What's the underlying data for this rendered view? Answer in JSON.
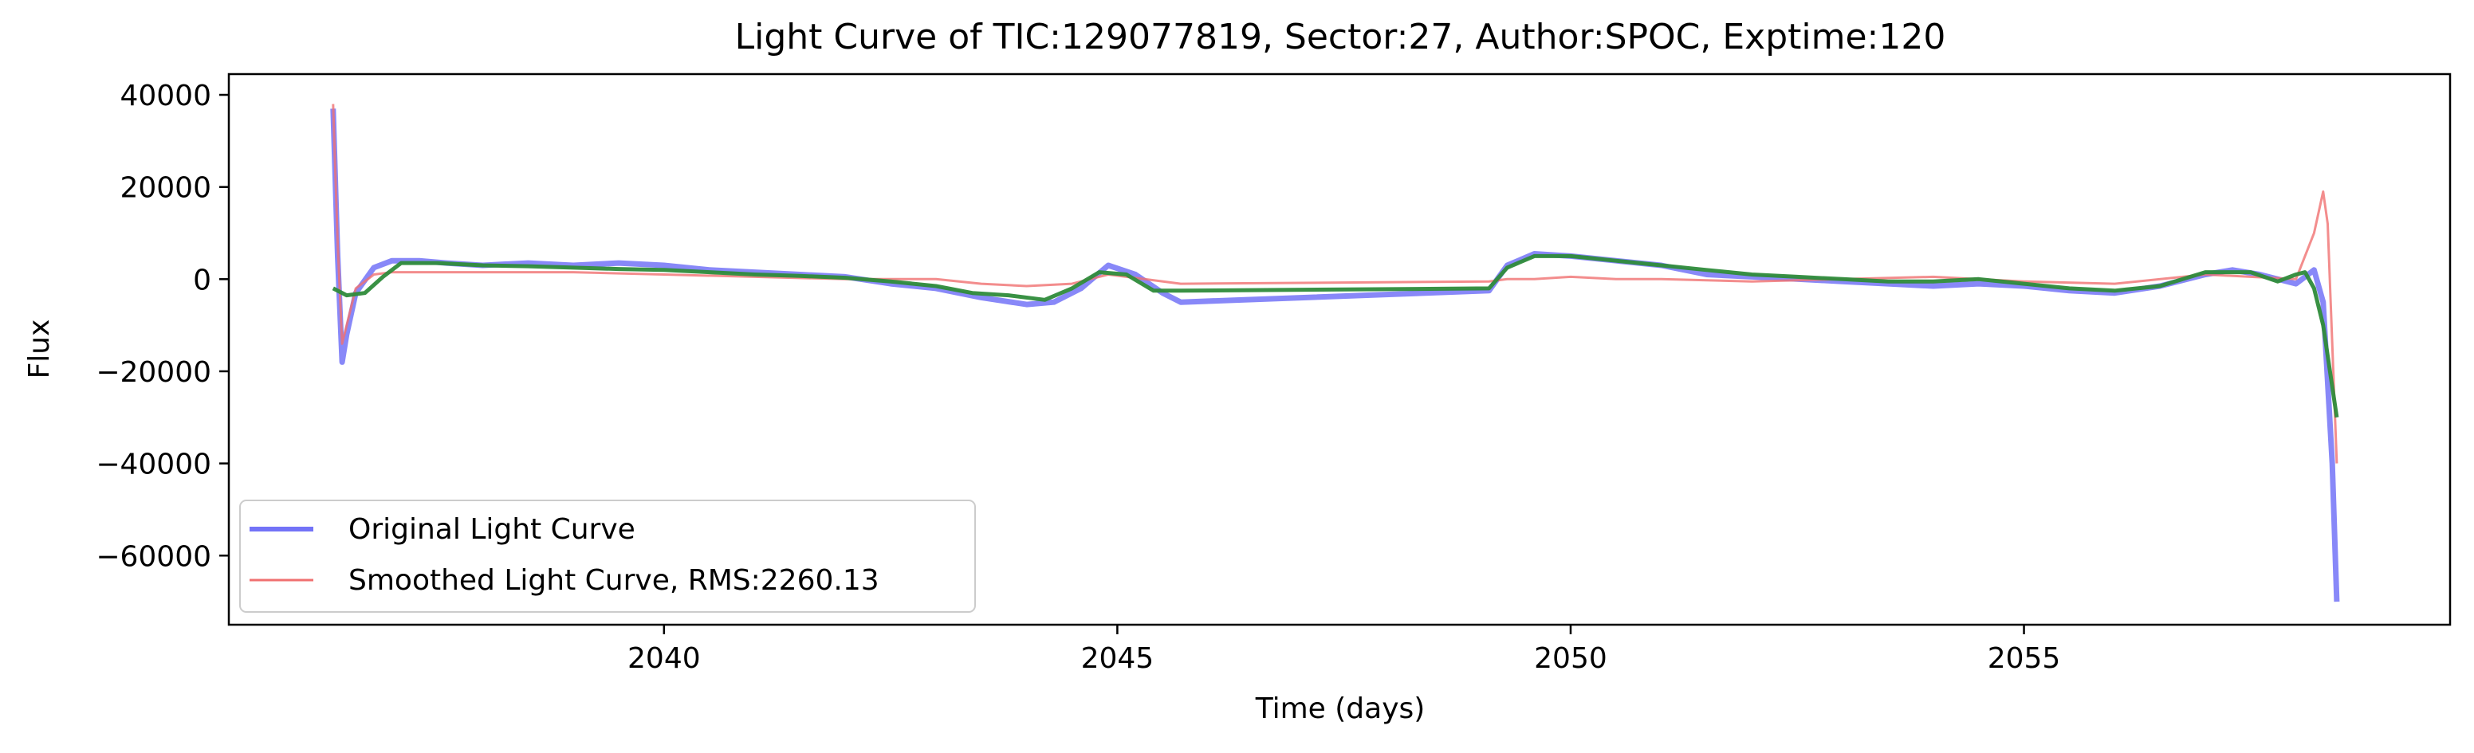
{
  "chart_data": {
    "type": "line",
    "title": "Light Curve of TIC:129077819, Sector:27, Author:SPOC, Exptime:120",
    "xlabel": "Time (days)",
    "ylabel": "Flux",
    "xlim": [
      2035.2,
      2059.7
    ],
    "ylim": [
      -75000,
      44500
    ],
    "xticks": [
      2040,
      2045,
      2050,
      2055
    ],
    "yticks": [
      40000,
      20000,
      0,
      -20000,
      -40000,
      -60000
    ],
    "grid": false,
    "legend_position": "lower-left",
    "legend_entries": [
      "Original Light Curve",
      "Smoothed Light Curve, RMS:2260.13"
    ],
    "series": [
      {
        "name": "Original Light Curve",
        "color": "#7373f7",
        "x": [
          2036.35,
          2036.4,
          2036.45,
          2036.5,
          2036.6,
          2036.8,
          2037.0,
          2037.3,
          2037.6,
          2038.0,
          2038.5,
          2039.0,
          2039.5,
          2040.0,
          2040.5,
          2041.0,
          2041.5,
          2042.0,
          2042.5,
          2043.0,
          2043.5,
          2044.0,
          2044.3,
          2044.6,
          2044.9,
          2045.2,
          2045.5,
          2045.7,
          2049.1,
          2049.3,
          2049.6,
          2050.0,
          2050.5,
          2051.0,
          2051.5,
          2052.0,
          2052.5,
          2053.0,
          2053.5,
          2054.0,
          2054.5,
          2055.0,
          2055.5,
          2056.0,
          2056.5,
          2057.0,
          2057.3,
          2057.6,
          2058.0,
          2058.2,
          2058.3,
          2058.4,
          2058.45
        ],
        "values": [
          37000,
          5000,
          -18000,
          -12000,
          -3000,
          2500,
          4000,
          4000,
          3500,
          3000,
          3500,
          3000,
          3500,
          3000,
          2000,
          1500,
          1000,
          500,
          -1000,
          -2000,
          -4000,
          -5500,
          -5000,
          -2000,
          3000,
          1000,
          -3000,
          -5000,
          -2500,
          3000,
          5500,
          5000,
          4000,
          3000,
          1000,
          500,
          0,
          -500,
          -1000,
          -1500,
          -1000,
          -1500,
          -2500,
          -3000,
          -1500,
          1000,
          2000,
          1000,
          -1000,
          2000,
          -5000,
          -40000,
          -70000
        ]
      },
      {
        "name": "Smoothed Light Curve, RMS:2260.13",
        "color": "#f07070",
        "x": [
          2036.35,
          2036.4,
          2036.45,
          2036.5,
          2036.6,
          2036.8,
          2037.0,
          2037.5,
          2038.0,
          2039.0,
          2040.0,
          2041.0,
          2042.0,
          2042.5,
          2043.0,
          2043.5,
          2044.0,
          2044.5,
          2044.9,
          2045.3,
          2045.7,
          2049.1,
          2049.3,
          2049.6,
          2050.0,
          2050.5,
          2051.0,
          2052.0,
          2053.0,
          2054.0,
          2055.0,
          2056.0,
          2057.0,
          2057.5,
          2058.0,
          2058.2,
          2058.3,
          2058.35,
          2058.45
        ],
        "values": [
          38000,
          8000,
          -14000,
          -10000,
          -2000,
          1000,
          1500,
          1500,
          1500,
          1500,
          1000,
          500,
          0,
          0,
          0,
          -1000,
          -1500,
          -1000,
          1000,
          0,
          -1000,
          -500,
          0,
          0,
          500,
          0,
          0,
          -500,
          0,
          500,
          -500,
          -1000,
          1000,
          500,
          0,
          10000,
          19000,
          12000,
          -40000
        ]
      },
      {
        "name": "",
        "color": "#2e8b3a",
        "x": [
          2036.35,
          2036.5,
          2036.7,
          2036.9,
          2037.1,
          2037.5,
          2038.0,
          2038.5,
          2039.0,
          2039.5,
          2040.0,
          2040.5,
          2041.0,
          2041.5,
          2042.0,
          2042.5,
          2043.0,
          2043.4,
          2043.8,
          2044.2,
          2044.5,
          2044.8,
          2045.1,
          2045.4,
          2045.7,
          2049.1,
          2049.3,
          2049.6,
          2050.0,
          2050.5,
          2051.0,
          2051.5,
          2052.0,
          2052.5,
          2053.0,
          2053.5,
          2054.0,
          2054.5,
          2055.0,
          2055.5,
          2056.0,
          2056.5,
          2057.0,
          2057.5,
          2057.8,
          2058.0,
          2058.1,
          2058.2,
          2058.3,
          2058.45
        ],
        "values": [
          -2000,
          -3500,
          -3000,
          500,
          3500,
          3500,
          3000,
          2800,
          2500,
          2200,
          2000,
          1500,
          1000,
          700,
          300,
          -500,
          -1500,
          -3000,
          -3500,
          -4500,
          -2000,
          1500,
          1000,
          -2500,
          -2500,
          -2000,
          2500,
          5000,
          5000,
          4000,
          3000,
          2000,
          1000,
          500,
          0,
          -500,
          -500,
          0,
          -1000,
          -2000,
          -2500,
          -1500,
          1500,
          1500,
          -500,
          1000,
          1500,
          -2000,
          -10000,
          -30000
        ]
      }
    ]
  }
}
